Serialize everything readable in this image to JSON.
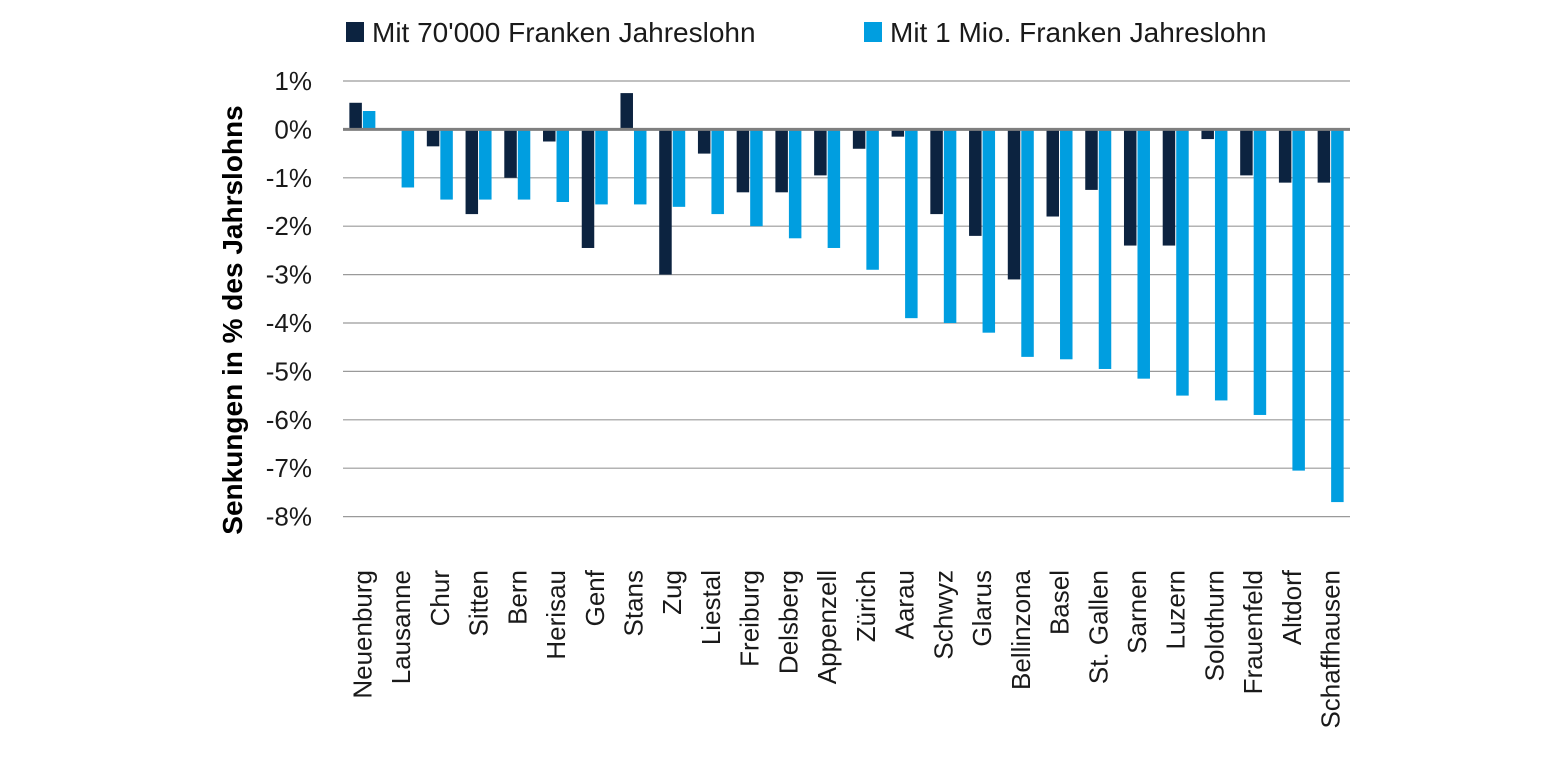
{
  "chart_data": {
    "type": "bar",
    "title": "",
    "xlabel": "",
    "ylabel": "Senkungen  in % des Jahrslohns",
    "ylim": [
      -8,
      1
    ],
    "yticks": [
      1,
      0,
      -1,
      -2,
      -3,
      -4,
      -5,
      -6,
      -7,
      -8
    ],
    "ytick_labels": [
      "1%",
      "0%",
      "-1%",
      "-2%",
      "-3%",
      "-4%",
      "-5%",
      "-6%",
      "-7%",
      "-8%"
    ],
    "grid": true,
    "legend_position": "top",
    "categories": [
      "Neuenburg",
      "Lausanne",
      "Chur",
      "Sitten",
      "Bern",
      "Herisau",
      "Genf",
      "Stans",
      "Zug",
      "Liestal",
      "Freiburg",
      "Delsberg",
      "Appenzell",
      "Zürich",
      "Aarau",
      "Schwyz",
      "Glarus",
      "Bellinzona",
      "Basel",
      "St. Gallen",
      "Sarnen",
      "Luzern",
      "Solothurn",
      "Frauenfeld",
      "Altdorf",
      "Schaffhausen"
    ],
    "series": [
      {
        "name": "Mit 70'000 Franken Jahreslohn",
        "color": "#0c2340",
        "values": [
          0.55,
          0,
          -0.35,
          -1.75,
          -1.0,
          -0.25,
          -2.45,
          0.75,
          -3.0,
          -0.5,
          -1.3,
          -1.3,
          -0.95,
          -0.4,
          -0.15,
          -1.75,
          -2.2,
          -3.1,
          -1.8,
          -1.25,
          -2.4,
          -2.4,
          -0.2,
          -0.95,
          -1.1,
          -1.1
        ]
      },
      {
        "name": "Mit 1 Mio. Franken Jahreslohn",
        "color": "#009ee0",
        "values": [
          0.38,
          -1.2,
          -1.45,
          -1.45,
          -1.45,
          -1.5,
          -1.55,
          -1.55,
          -1.6,
          -1.75,
          -2.0,
          -2.25,
          -2.45,
          -2.9,
          -3.9,
          -4.0,
          -4.2,
          -4.7,
          -4.75,
          -4.95,
          -5.15,
          -5.5,
          -5.6,
          -5.9,
          -7.05,
          -7.7
        ]
      }
    ]
  }
}
